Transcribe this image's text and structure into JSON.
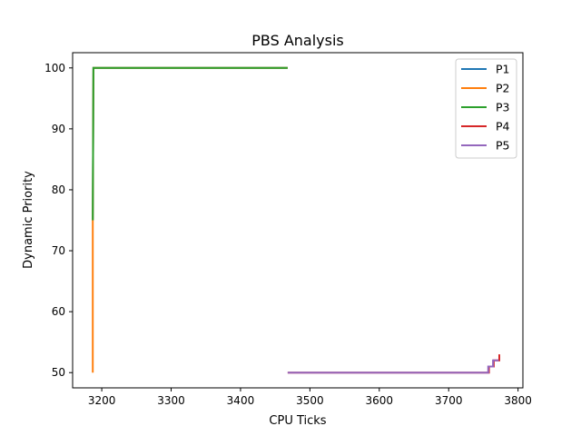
{
  "chart_data": {
    "type": "line",
    "title": "PBS Analysis",
    "xlabel": "CPU Ticks",
    "ylabel": "Dynamic Priority",
    "xlim": [
      3158,
      3807
    ],
    "ylim": [
      47.5,
      102.5
    ],
    "xticks": [
      3200,
      3300,
      3400,
      3500,
      3600,
      3700,
      3800
    ],
    "yticks": [
      50,
      60,
      70,
      80,
      90,
      100
    ],
    "grid": false,
    "legend_position": "top-right",
    "series": [
      {
        "name": "P1",
        "color": "#1f77b4",
        "points": [
          [
            3187,
            75
          ],
          [
            3188,
            100
          ],
          [
            3468,
            100
          ]
        ]
      },
      {
        "name": "P2",
        "color": "#ff7f0e",
        "points": [
          [
            3187,
            50
          ],
          [
            3187,
            75
          ],
          [
            3188,
            100
          ],
          [
            3468,
            100
          ]
        ]
      },
      {
        "name": "P3",
        "color": "#2ca02c",
        "points": [
          [
            3187,
            75
          ],
          [
            3188,
            100
          ],
          [
            3468,
            100
          ]
        ]
      },
      {
        "name": "P4",
        "color": "#d62728",
        "points": [
          [
            3468,
            50
          ],
          [
            3758,
            50
          ],
          [
            3758,
            51
          ],
          [
            3765,
            51
          ],
          [
            3765,
            52
          ],
          [
            3773,
            52
          ],
          [
            3773,
            53
          ]
        ]
      },
      {
        "name": "P5",
        "color": "#9467bd",
        "points": [
          [
            3468,
            50
          ],
          [
            3757,
            50
          ],
          [
            3757,
            51
          ],
          [
            3764,
            51
          ],
          [
            3764,
            52
          ],
          [
            3772,
            52
          ]
        ]
      }
    ]
  }
}
